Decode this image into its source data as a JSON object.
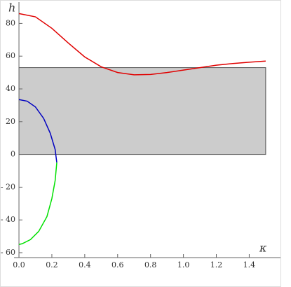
{
  "chart_data": {
    "type": "line",
    "xlabel": "κ",
    "ylabel": "h",
    "xlim": [
      -0.03,
      1.59
    ],
    "ylim": [
      -63,
      93
    ],
    "xticks": [
      {
        "value": 0,
        "label": "0.0"
      },
      {
        "value": 0.2,
        "label": "0.2"
      },
      {
        "value": 0.4,
        "label": "0.4"
      },
      {
        "value": 0.6,
        "label": "0.6"
      },
      {
        "value": 0.8,
        "label": "0.8"
      },
      {
        "value": 1.0,
        "label": "1.0"
      },
      {
        "value": 1.2,
        "label": "1.2"
      },
      {
        "value": 1.4,
        "label": "1.4"
      }
    ],
    "yticks": [
      {
        "value": -60,
        "label": "- 60"
      },
      {
        "value": -40,
        "label": "- 40"
      },
      {
        "value": -20,
        "label": "- 20"
      },
      0,
      20,
      40,
      60,
      80
    ],
    "band": {
      "x": [
        0,
        1.5
      ],
      "y": [
        0,
        53
      ],
      "color": "#cccccc"
    },
    "series": [
      {
        "color": "#e00000",
        "x": [
          0,
          0.1,
          0.2,
          0.3,
          0.4,
          0.5,
          0.6,
          0.7,
          0.8,
          0.9,
          1.0,
          1.1,
          1.2,
          1.3,
          1.4,
          1.5
        ],
        "values": [
          86,
          84,
          77,
          68,
          59.5,
          53.5,
          50,
          48.6,
          48.8,
          50,
          51.5,
          53,
          54.5,
          55.5,
          56.3,
          57
        ]
      },
      {
        "color": "#0000c0",
        "x": [
          0,
          0.05,
          0.1,
          0.15,
          0.19,
          0.22,
          0.23
        ],
        "values": [
          33.5,
          32.5,
          29,
          22,
          13,
          3,
          -5
        ]
      },
      {
        "color": "#00e000",
        "x": [
          0.23,
          0.22,
          0.2,
          0.17,
          0.12,
          0.07,
          0.02,
          0
        ],
        "values": [
          -5,
          -16,
          -27,
          -38,
          -47,
          -52,
          -54.5,
          -55
        ]
      }
    ]
  }
}
